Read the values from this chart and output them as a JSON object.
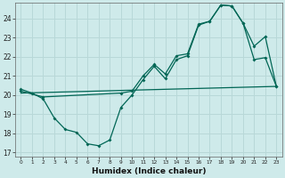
{
  "xlabel": "Humidex (Indice chaleur)",
  "background_color": "#ceeaea",
  "grid_color": "#b8d8d8",
  "line_color": "#006655",
  "xlim": [
    -0.5,
    23.5
  ],
  "ylim": [
    16.8,
    24.8
  ],
  "yticks": [
    17,
    18,
    19,
    20,
    21,
    22,
    23,
    24
  ],
  "xticks": [
    0,
    1,
    2,
    3,
    4,
    5,
    6,
    7,
    8,
    9,
    10,
    11,
    12,
    13,
    14,
    15,
    16,
    17,
    18,
    19,
    20,
    21,
    22,
    23
  ],
  "series1_x": [
    0,
    1,
    2,
    3,
    4,
    5,
    6,
    7,
    8,
    9,
    10,
    11,
    12,
    13,
    14,
    15,
    16,
    17,
    18,
    19,
    20,
    21,
    22,
    23
  ],
  "series1_y": [
    20.3,
    20.1,
    19.8,
    18.8,
    18.2,
    18.05,
    17.45,
    17.35,
    17.65,
    19.35,
    20.0,
    20.8,
    21.5,
    20.85,
    21.85,
    22.05,
    23.65,
    23.85,
    24.7,
    24.65,
    23.75,
    21.85,
    21.95,
    20.45
  ],
  "series2_x": [
    0,
    2,
    9,
    10,
    11,
    12,
    13,
    14,
    15,
    16,
    17,
    18,
    19,
    20,
    21,
    22,
    23
  ],
  "series2_y": [
    20.2,
    19.9,
    20.1,
    20.2,
    21.0,
    21.6,
    21.1,
    22.05,
    22.15,
    23.7,
    23.85,
    24.7,
    24.65,
    23.75,
    22.55,
    23.05,
    20.45
  ],
  "series3_x": [
    0,
    23
  ],
  "series3_y": [
    20.1,
    20.45
  ]
}
